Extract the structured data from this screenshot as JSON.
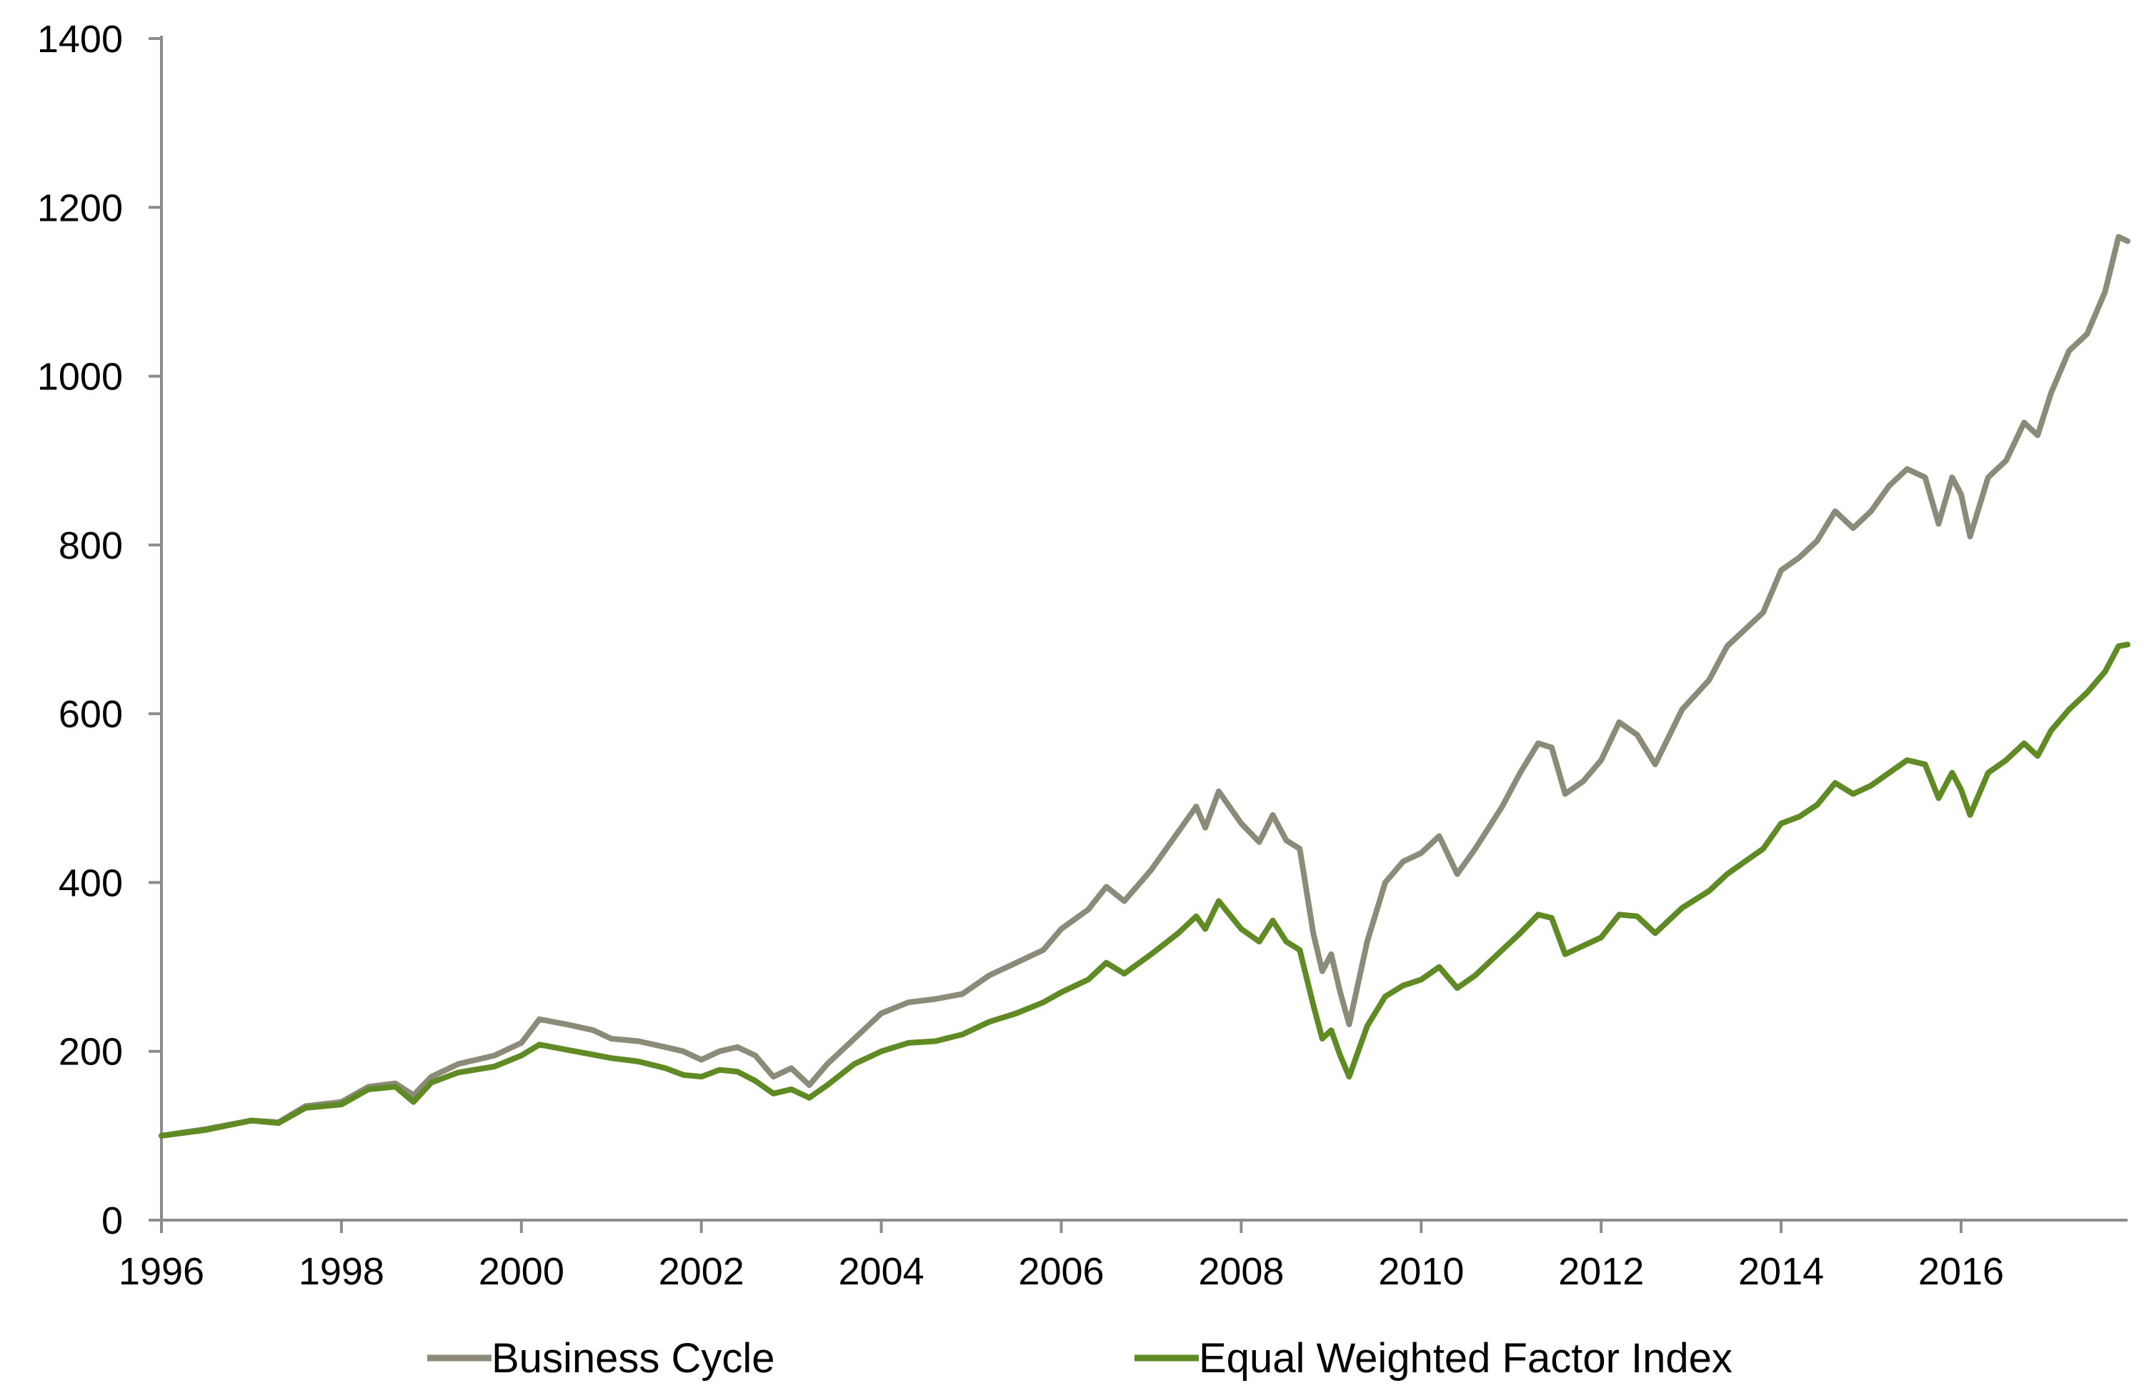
{
  "chart_data": {
    "type": "line",
    "title": "",
    "xlabel": "",
    "ylabel": "",
    "xlim": [
      1996,
      2017.85
    ],
    "ylim": [
      0,
      1400
    ],
    "y_ticks": [
      0,
      200,
      400,
      600,
      800,
      1000,
      1200,
      1400
    ],
    "x_ticks": [
      1996,
      1998,
      2000,
      2002,
      2004,
      2006,
      2008,
      2010,
      2012,
      2014,
      2016
    ],
    "grid": false,
    "legend_position": "bottom",
    "series": [
      {
        "name": "Business Cycle",
        "color": "#8c8a78",
        "points": [
          [
            1996.0,
            100
          ],
          [
            1996.5,
            108
          ],
          [
            1997.0,
            118
          ],
          [
            1997.3,
            116
          ],
          [
            1997.6,
            135
          ],
          [
            1998.0,
            140
          ],
          [
            1998.3,
            158
          ],
          [
            1998.6,
            162
          ],
          [
            1998.8,
            148
          ],
          [
            1999.0,
            170
          ],
          [
            1999.3,
            185
          ],
          [
            1999.7,
            195
          ],
          [
            2000.0,
            210
          ],
          [
            2000.2,
            238
          ],
          [
            2000.5,
            232
          ],
          [
            2000.8,
            225
          ],
          [
            2001.0,
            215
          ],
          [
            2001.3,
            212
          ],
          [
            2001.6,
            205
          ],
          [
            2001.8,
            200
          ],
          [
            2002.0,
            190
          ],
          [
            2002.2,
            200
          ],
          [
            2002.4,
            205
          ],
          [
            2002.6,
            195
          ],
          [
            2002.8,
            170
          ],
          [
            2003.0,
            180
          ],
          [
            2003.2,
            160
          ],
          [
            2003.4,
            185
          ],
          [
            2003.7,
            215
          ],
          [
            2004.0,
            245
          ],
          [
            2004.3,
            258
          ],
          [
            2004.6,
            262
          ],
          [
            2004.9,
            268
          ],
          [
            2005.2,
            290
          ],
          [
            2005.5,
            305
          ],
          [
            2005.8,
            320
          ],
          [
            2006.0,
            345
          ],
          [
            2006.3,
            368
          ],
          [
            2006.5,
            395
          ],
          [
            2006.7,
            378
          ],
          [
            2007.0,
            415
          ],
          [
            2007.3,
            460
          ],
          [
            2007.5,
            490
          ],
          [
            2007.6,
            465
          ],
          [
            2007.75,
            508
          ],
          [
            2008.0,
            470
          ],
          [
            2008.2,
            448
          ],
          [
            2008.35,
            480
          ],
          [
            2008.5,
            450
          ],
          [
            2008.65,
            440
          ],
          [
            2008.8,
            340
          ],
          [
            2008.9,
            295
          ],
          [
            2009.0,
            315
          ],
          [
            2009.1,
            270
          ],
          [
            2009.2,
            232
          ],
          [
            2009.4,
            330
          ],
          [
            2009.6,
            400
          ],
          [
            2009.8,
            425
          ],
          [
            2010.0,
            435
          ],
          [
            2010.2,
            455
          ],
          [
            2010.4,
            410
          ],
          [
            2010.6,
            440
          ],
          [
            2010.9,
            490
          ],
          [
            2011.1,
            530
          ],
          [
            2011.3,
            565
          ],
          [
            2011.45,
            560
          ],
          [
            2011.6,
            505
          ],
          [
            2011.8,
            520
          ],
          [
            2012.0,
            545
          ],
          [
            2012.2,
            590
          ],
          [
            2012.4,
            575
          ],
          [
            2012.6,
            540
          ],
          [
            2012.9,
            605
          ],
          [
            2013.2,
            640
          ],
          [
            2013.4,
            680
          ],
          [
            2013.6,
            700
          ],
          [
            2013.8,
            720
          ],
          [
            2014.0,
            770
          ],
          [
            2014.2,
            785
          ],
          [
            2014.4,
            805
          ],
          [
            2014.6,
            840
          ],
          [
            2014.8,
            820
          ],
          [
            2015.0,
            840
          ],
          [
            2015.2,
            870
          ],
          [
            2015.4,
            890
          ],
          [
            2015.6,
            880
          ],
          [
            2015.75,
            825
          ],
          [
            2015.9,
            880
          ],
          [
            2016.0,
            860
          ],
          [
            2016.1,
            810
          ],
          [
            2016.3,
            880
          ],
          [
            2016.5,
            900
          ],
          [
            2016.7,
            945
          ],
          [
            2016.85,
            930
          ],
          [
            2017.0,
            980
          ],
          [
            2017.2,
            1030
          ],
          [
            2017.4,
            1050
          ],
          [
            2017.6,
            1100
          ],
          [
            2017.75,
            1165
          ],
          [
            2017.85,
            1160
          ]
        ]
      },
      {
        "name": "Equal Weighted Factor Index",
        "color": "#5f8a24",
        "points": [
          [
            1996.0,
            100
          ],
          [
            1996.5,
            107
          ],
          [
            1997.0,
            118
          ],
          [
            1997.3,
            115
          ],
          [
            1997.6,
            133
          ],
          [
            1998.0,
            137
          ],
          [
            1998.3,
            155
          ],
          [
            1998.6,
            158
          ],
          [
            1998.8,
            140
          ],
          [
            1999.0,
            163
          ],
          [
            1999.3,
            175
          ],
          [
            1999.7,
            182
          ],
          [
            2000.0,
            195
          ],
          [
            2000.2,
            208
          ],
          [
            2000.5,
            202
          ],
          [
            2000.8,
            196
          ],
          [
            2001.0,
            192
          ],
          [
            2001.3,
            188
          ],
          [
            2001.6,
            180
          ],
          [
            2001.8,
            172
          ],
          [
            2002.0,
            170
          ],
          [
            2002.2,
            178
          ],
          [
            2002.4,
            176
          ],
          [
            2002.6,
            165
          ],
          [
            2002.8,
            150
          ],
          [
            2003.0,
            155
          ],
          [
            2003.2,
            145
          ],
          [
            2003.4,
            160
          ],
          [
            2003.7,
            185
          ],
          [
            2004.0,
            200
          ],
          [
            2004.3,
            210
          ],
          [
            2004.6,
            212
          ],
          [
            2004.9,
            220
          ],
          [
            2005.2,
            235
          ],
          [
            2005.5,
            245
          ],
          [
            2005.8,
            258
          ],
          [
            2006.0,
            270
          ],
          [
            2006.3,
            285
          ],
          [
            2006.5,
            305
          ],
          [
            2006.7,
            292
          ],
          [
            2007.0,
            315
          ],
          [
            2007.3,
            340
          ],
          [
            2007.5,
            360
          ],
          [
            2007.6,
            345
          ],
          [
            2007.75,
            378
          ],
          [
            2008.0,
            345
          ],
          [
            2008.2,
            330
          ],
          [
            2008.35,
            355
          ],
          [
            2008.5,
            330
          ],
          [
            2008.65,
            320
          ],
          [
            2008.8,
            255
          ],
          [
            2008.9,
            215
          ],
          [
            2009.0,
            225
          ],
          [
            2009.1,
            195
          ],
          [
            2009.2,
            170
          ],
          [
            2009.4,
            230
          ],
          [
            2009.6,
            265
          ],
          [
            2009.8,
            278
          ],
          [
            2010.0,
            285
          ],
          [
            2010.2,
            300
          ],
          [
            2010.4,
            275
          ],
          [
            2010.6,
            290
          ],
          [
            2010.9,
            320
          ],
          [
            2011.1,
            340
          ],
          [
            2011.3,
            362
          ],
          [
            2011.45,
            358
          ],
          [
            2011.6,
            315
          ],
          [
            2011.8,
            325
          ],
          [
            2012.0,
            335
          ],
          [
            2012.2,
            362
          ],
          [
            2012.4,
            360
          ],
          [
            2012.6,
            340
          ],
          [
            2012.9,
            370
          ],
          [
            2013.2,
            390
          ],
          [
            2013.4,
            410
          ],
          [
            2013.6,
            425
          ],
          [
            2013.8,
            440
          ],
          [
            2014.0,
            470
          ],
          [
            2014.2,
            478
          ],
          [
            2014.4,
            492
          ],
          [
            2014.6,
            518
          ],
          [
            2014.8,
            505
          ],
          [
            2015.0,
            515
          ],
          [
            2015.2,
            530
          ],
          [
            2015.4,
            545
          ],
          [
            2015.6,
            540
          ],
          [
            2015.75,
            500
          ],
          [
            2015.9,
            530
          ],
          [
            2016.0,
            510
          ],
          [
            2016.1,
            480
          ],
          [
            2016.3,
            530
          ],
          [
            2016.5,
            545
          ],
          [
            2016.7,
            565
          ],
          [
            2016.85,
            550
          ],
          [
            2017.0,
            580
          ],
          [
            2017.2,
            605
          ],
          [
            2017.4,
            625
          ],
          [
            2017.6,
            650
          ],
          [
            2017.75,
            680
          ],
          [
            2017.85,
            682
          ]
        ]
      }
    ]
  }
}
